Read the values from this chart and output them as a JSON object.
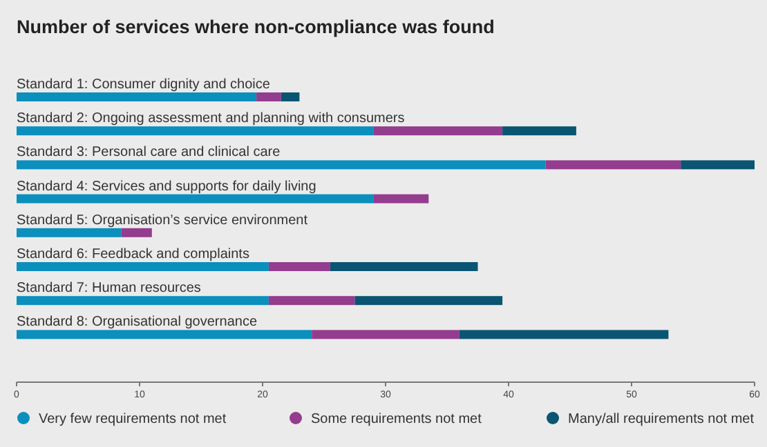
{
  "chart_data": {
    "type": "bar",
    "orientation": "horizontal",
    "stacked": true,
    "title": "Number of services where non-compliance was found",
    "categories": [
      "Standard 1: Consumer dignity and choice",
      "Standard 2: Ongoing assessment and planning with consumers",
      "Standard 3: Personal care and clinical care",
      "Standard 4: Services and supports for daily living",
      "Standard 5: Organisation’s service environment",
      "Standard 6: Feedback and complaints",
      "Standard 7: Human resources",
      "Standard 8: Organisational governance"
    ],
    "series": [
      {
        "name": "Very few requirements not met",
        "color": "#0b8fbd",
        "values": [
          19.5,
          29,
          43,
          29,
          8.5,
          20.5,
          20.5,
          24
        ]
      },
      {
        "name": "Some requirements not met",
        "color": "#943c8e",
        "values": [
          2,
          10.5,
          11,
          4.5,
          2.5,
          5,
          7,
          12
        ]
      },
      {
        "name": "Many/all requirements not met",
        "color": "#0a5571",
        "values": [
          1.5,
          6,
          6,
          0,
          0,
          12,
          12,
          17
        ]
      }
    ],
    "xlim": [
      0,
      60
    ],
    "xticks": [
      0,
      10,
      20,
      30,
      40,
      50,
      60
    ],
    "legend": "bottom"
  }
}
